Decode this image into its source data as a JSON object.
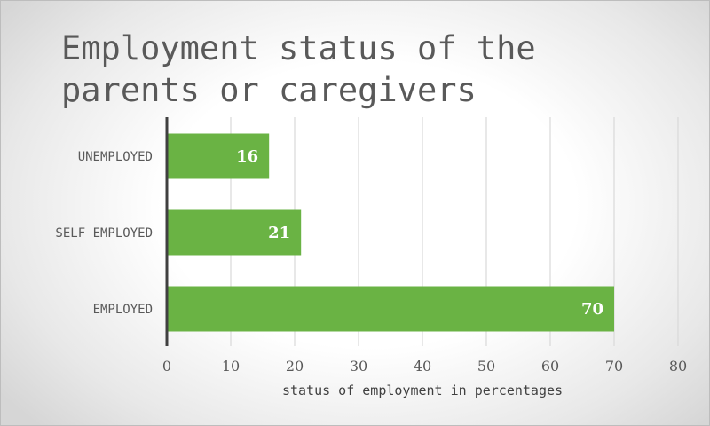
{
  "chart_data": {
    "type": "bar",
    "orientation": "horizontal",
    "title": "Employment status of the parents or caregivers",
    "categories": [
      "UNEMPLOYED",
      "SELF EMPLOYED",
      "EMPLOYED"
    ],
    "values": [
      16,
      21,
      70
    ],
    "data_labels": [
      "16",
      "21",
      "70"
    ],
    "xlabel": "status of employment in percentages",
    "ylabel": "",
    "xlim": [
      0,
      80
    ],
    "x_ticks": [
      0,
      10,
      20,
      30,
      40,
      50,
      60,
      70,
      80
    ],
    "grid": true,
    "legend": "none",
    "bar_color": "#6ab344",
    "grid_color": "#d9d9d9",
    "axis_color": "#404040"
  }
}
